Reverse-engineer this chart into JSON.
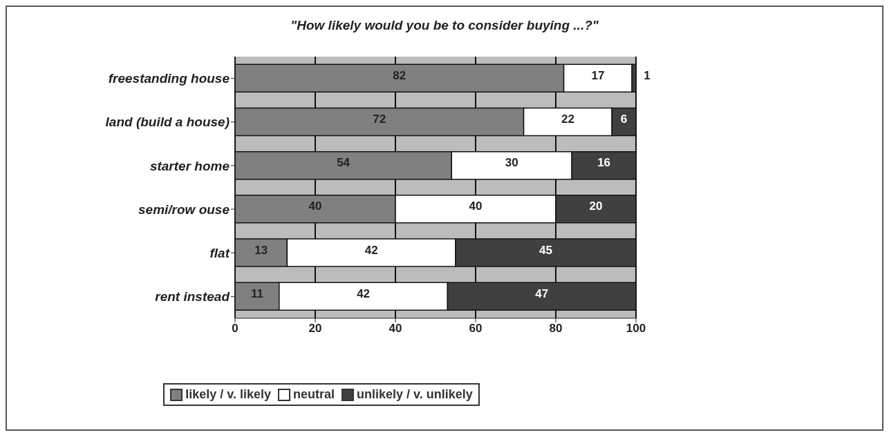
{
  "chart_data": {
    "type": "bar",
    "orientation": "horizontal",
    "stacked": true,
    "title": "\"How likely would you be to consider buying ...?\"",
    "categories": [
      "freestanding house",
      "land (build a house)",
      "starter home",
      "semi/row ouse",
      "flat",
      "rent instead"
    ],
    "series": [
      {
        "name": "likely / v. likely",
        "color": "#808080",
        "values": [
          82,
          72,
          54,
          40,
          13,
          11
        ]
      },
      {
        "name": "neutral",
        "color": "#ffffff",
        "values": [
          17,
          22,
          30,
          40,
          42,
          42
        ]
      },
      {
        "name": "unlikely / v. unlikely",
        "color": "#404040",
        "values": [
          1,
          6,
          16,
          20,
          45,
          47
        ]
      }
    ],
    "xlim": [
      0,
      100
    ],
    "xticks": [
      0,
      20,
      40,
      60,
      80,
      100
    ],
    "grid": "x",
    "legend": "bottom",
    "data_labels": true
  }
}
